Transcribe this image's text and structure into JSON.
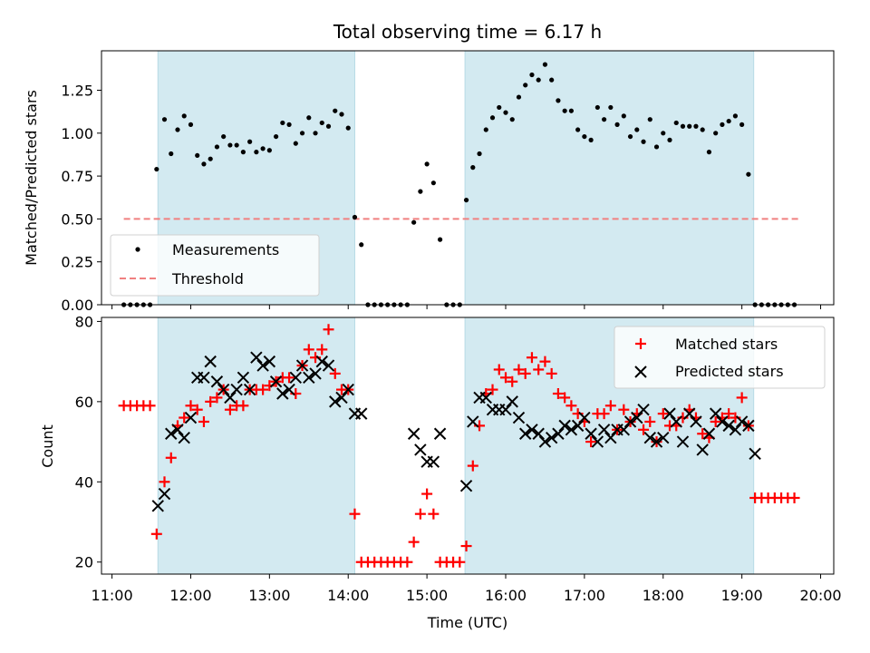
{
  "chart_data": {
    "type": "scatter",
    "title": "Total observing time = 6.17 h",
    "xlabel": "Time (UTC)",
    "x_ticks": [
      "11:00",
      "12:00",
      "13:00",
      "14:00",
      "15:00",
      "16:00",
      "17:00",
      "18:00",
      "19:00",
      "20:00"
    ],
    "x_range": [
      "10:52",
      "20:10"
    ],
    "observing_windows": [
      [
        "11:35",
        "14:05"
      ],
      [
        "15:29",
        "19:09"
      ]
    ],
    "shade_color": "#d3eaf1",
    "top_panel": {
      "ylabel": "Matched/Predicted stars",
      "ylim": [
        0,
        1.48
      ],
      "yticks": [
        "0.00",
        "0.25",
        "0.50",
        "0.75",
        "1.00",
        "1.25"
      ],
      "legend_position": "lower-left",
      "series": [
        {
          "name": "Measurements",
          "color": "#000000",
          "marker": "dot",
          "x": [
            "11:09",
            "11:14",
            "11:19",
            "11:24",
            "11:29",
            "11:34",
            "11:40",
            "11:45",
            "11:50",
            "11:55",
            "12:00",
            "12:05",
            "12:10",
            "12:15",
            "12:20",
            "12:25",
            "12:30",
            "12:35",
            "12:40",
            "12:45",
            "12:50",
            "12:55",
            "13:00",
            "13:05",
            "13:10",
            "13:15",
            "13:20",
            "13:25",
            "13:30",
            "13:35",
            "13:40",
            "13:45",
            "13:50",
            "13:55",
            "14:00",
            "14:05",
            "14:10",
            "14:15",
            "14:20",
            "14:25",
            "14:30",
            "14:35",
            "14:40",
            "14:45",
            "14:50",
            "14:55",
            "15:00",
            "15:05",
            "15:10",
            "15:15",
            "15:20",
            "15:25",
            "15:30",
            "15:35",
            "15:40",
            "15:45",
            "15:50",
            "15:55",
            "16:00",
            "16:05",
            "16:10",
            "16:15",
            "16:20",
            "16:25",
            "16:30",
            "16:35",
            "16:40",
            "16:45",
            "16:50",
            "16:55",
            "17:00",
            "17:05",
            "17:10",
            "17:15",
            "17:20",
            "17:25",
            "17:30",
            "17:35",
            "17:40",
            "17:45",
            "17:50",
            "17:55",
            "18:00",
            "18:05",
            "18:10",
            "18:15",
            "18:20",
            "18:25",
            "18:30",
            "18:35",
            "18:40",
            "18:45",
            "18:50",
            "18:55",
            "19:00",
            "19:05",
            "19:10",
            "19:15",
            "19:20",
            "19:25",
            "19:30",
            "19:35",
            "19:40"
          ],
          "y": [
            0,
            0,
            0,
            0,
            0,
            0.79,
            1.08,
            0.88,
            1.02,
            1.1,
            1.05,
            0.87,
            0.82,
            0.85,
            0.92,
            0.98,
            0.93,
            0.93,
            0.89,
            0.95,
            0.89,
            0.91,
            0.9,
            0.98,
            1.06,
            1.05,
            0.94,
            1.0,
            1.09,
            1.0,
            1.06,
            1.04,
            1.13,
            1.11,
            1.03,
            0.51,
            0.35,
            0,
            0,
            0,
            0,
            0,
            0,
            0,
            0.48,
            0.66,
            0.82,
            0.71,
            0.38,
            0,
            0,
            0,
            0.61,
            0.8,
            0.88,
            1.02,
            1.09,
            1.15,
            1.12,
            1.08,
            1.21,
            1.28,
            1.34,
            1.31,
            1.4,
            1.31,
            1.19,
            1.13,
            1.13,
            1.02,
            0.98,
            0.96,
            1.15,
            1.08,
            1.15,
            1.05,
            1.1,
            0.98,
            1.02,
            0.95,
            1.08,
            0.92,
            1.0,
            0.96,
            1.06,
            1.04,
            1.04,
            1.04,
            1.02,
            0.89,
            1.0,
            1.05,
            1.07,
            1.1,
            1.05,
            0.76,
            0,
            0,
            0,
            0,
            0,
            0,
            0
          ]
        },
        {
          "name": "Threshold",
          "color": "#f08080",
          "style": "dashed",
          "x": [
            "11:09",
            "19:44"
          ],
          "y": [
            0.5,
            0.5
          ]
        }
      ]
    },
    "bottom_panel": {
      "ylabel": "Count",
      "ylim": [
        17,
        81
      ],
      "yticks": [
        "20",
        "40",
        "60",
        "80"
      ],
      "legend_position": "top-right",
      "series": [
        {
          "name": "Matched stars",
          "color": "#ff0000",
          "marker": "plus",
          "x": [
            "11:09",
            "11:14",
            "11:19",
            "11:24",
            "11:29",
            "11:34",
            "11:40",
            "11:45",
            "11:50",
            "11:55",
            "12:00",
            "12:05",
            "12:10",
            "12:15",
            "12:20",
            "12:25",
            "12:30",
            "12:35",
            "12:40",
            "12:45",
            "12:50",
            "12:55",
            "13:00",
            "13:05",
            "13:10",
            "13:15",
            "13:20",
            "13:25",
            "13:30",
            "13:35",
            "13:40",
            "13:45",
            "13:50",
            "13:55",
            "14:00",
            "14:05",
            "14:10",
            "14:15",
            "14:20",
            "14:25",
            "14:30",
            "14:35",
            "14:40",
            "14:45",
            "14:50",
            "14:55",
            "15:00",
            "15:05",
            "15:10",
            "15:15",
            "15:20",
            "15:25",
            "15:30",
            "15:35",
            "15:40",
            "15:45",
            "15:50",
            "15:55",
            "16:00",
            "16:05",
            "16:10",
            "16:15",
            "16:20",
            "16:25",
            "16:30",
            "16:35",
            "16:40",
            "16:45",
            "16:50",
            "16:55",
            "17:00",
            "17:05",
            "17:10",
            "17:15",
            "17:20",
            "17:25",
            "17:30",
            "17:35",
            "17:40",
            "17:45",
            "17:50",
            "17:55",
            "18:00",
            "18:05",
            "18:10",
            "18:15",
            "18:20",
            "18:25",
            "18:30",
            "18:35",
            "18:40",
            "18:45",
            "18:50",
            "18:55",
            "19:00",
            "19:05",
            "19:10",
            "19:15",
            "19:20",
            "19:25",
            "19:30",
            "19:35",
            "19:40"
          ],
          "y": [
            59,
            59,
            59,
            59,
            59,
            27,
            40,
            46,
            54,
            56,
            59,
            58,
            55,
            60,
            61,
            63,
            58,
            59,
            59,
            63,
            63,
            63,
            64,
            65,
            66,
            66,
            62,
            69,
            73,
            71,
            73,
            78,
            67,
            63,
            63,
            32,
            20,
            20,
            20,
            20,
            20,
            20,
            20,
            20,
            25,
            32,
            37,
            32,
            20,
            20,
            20,
            20,
            24,
            44,
            54,
            62,
            63,
            68,
            66,
            65,
            68,
            67,
            71,
            68,
            70,
            67,
            62,
            61,
            59,
            57,
            55,
            50,
            57,
            57,
            59,
            53,
            58,
            55,
            57,
            53,
            55,
            50,
            57,
            54,
            54,
            56,
            58,
            56,
            52,
            51,
            55,
            56,
            57,
            56,
            61,
            54,
            36,
            36,
            36,
            36,
            36,
            36,
            36
          ]
        },
        {
          "name": "Predicted stars",
          "color": "#000000",
          "marker": "cross",
          "x": [
            "11:35",
            "11:40",
            "11:45",
            "11:50",
            "11:55",
            "12:00",
            "12:05",
            "12:10",
            "12:15",
            "12:20",
            "12:25",
            "12:30",
            "12:35",
            "12:40",
            "12:45",
            "12:50",
            "12:55",
            "13:00",
            "13:05",
            "13:10",
            "13:15",
            "13:20",
            "13:25",
            "13:30",
            "13:35",
            "13:40",
            "13:45",
            "13:50",
            "13:55",
            "14:00",
            "14:05",
            "14:10",
            "14:50",
            "14:55",
            "15:00",
            "15:05",
            "15:10",
            "15:30",
            "15:35",
            "15:40",
            "15:45",
            "15:50",
            "15:55",
            "16:00",
            "16:05",
            "16:10",
            "16:15",
            "16:20",
            "16:25",
            "16:30",
            "16:35",
            "16:40",
            "16:45",
            "16:50",
            "16:55",
            "17:00",
            "17:05",
            "17:10",
            "17:15",
            "17:20",
            "17:25",
            "17:30",
            "17:35",
            "17:40",
            "17:45",
            "17:50",
            "17:55",
            "18:00",
            "18:05",
            "18:10",
            "18:15",
            "18:20",
            "18:25",
            "18:30",
            "18:35",
            "18:40",
            "18:45",
            "18:50",
            "18:55",
            "19:00",
            "19:05",
            "19:10"
          ],
          "y": [
            34,
            37,
            52,
            53,
            51,
            56,
            66,
            66,
            70,
            65,
            63,
            61,
            63,
            66,
            63,
            71,
            69,
            70,
            65,
            62,
            63,
            66,
            69,
            66,
            67,
            70,
            69,
            60,
            61,
            63,
            57,
            57,
            52,
            48,
            45,
            45,
            52,
            39,
            55,
            61,
            61,
            58,
            58,
            58,
            60,
            56,
            52,
            53,
            52,
            50,
            51,
            52,
            54,
            53,
            54,
            56,
            52,
            50,
            53,
            51,
            53,
            53,
            55,
            56,
            58,
            51,
            50,
            51,
            57,
            55,
            50,
            57,
            55,
            48,
            52,
            57,
            55,
            54,
            53,
            55,
            54,
            47
          ]
        }
      ]
    }
  }
}
